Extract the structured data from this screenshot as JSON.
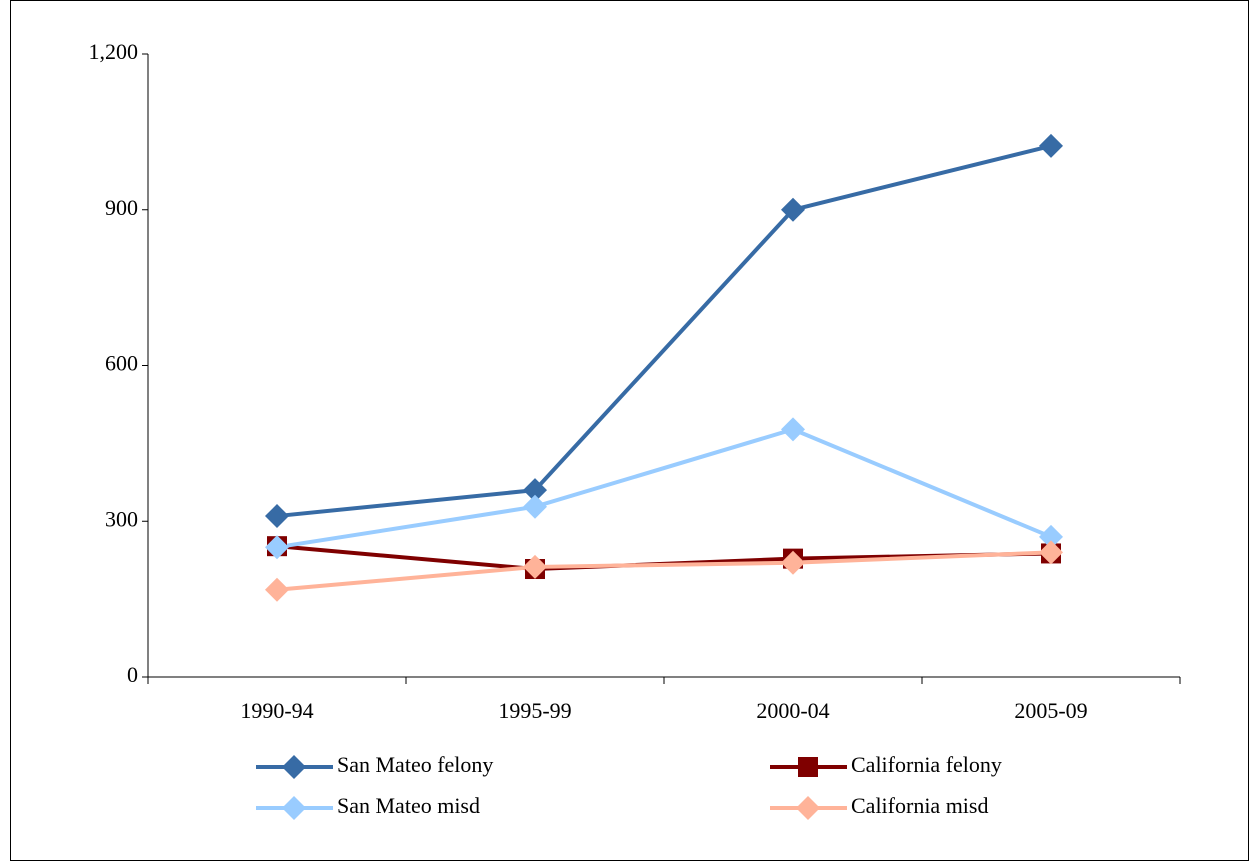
{
  "chart_data": {
    "type": "line",
    "categories": [
      "1990-94",
      "1995-99",
      "2000-04",
      "2005-09"
    ],
    "series": [
      {
        "name": "San Mateo felony",
        "color": "#376ba5",
        "marker": "diamond",
        "values": [
          310,
          360,
          900,
          1023
        ]
      },
      {
        "name": "California felony",
        "color": "#7f0000",
        "marker": "square",
        "values": [
          252,
          208,
          228,
          238
        ]
      },
      {
        "name": "San Mateo misd",
        "color": "#99ccff",
        "marker": "diamond",
        "values": [
          250,
          328,
          477,
          270
        ]
      },
      {
        "name": "California misd",
        "color": "#ffb399",
        "marker": "diamond",
        "values": [
          168,
          212,
          220,
          240
        ]
      }
    ],
    "ylim": [
      0,
      1200
    ],
    "yticks": [
      0,
      300,
      600,
      900,
      {
        "value": 1200,
        "label": "1,200"
      }
    ],
    "grid": false
  }
}
